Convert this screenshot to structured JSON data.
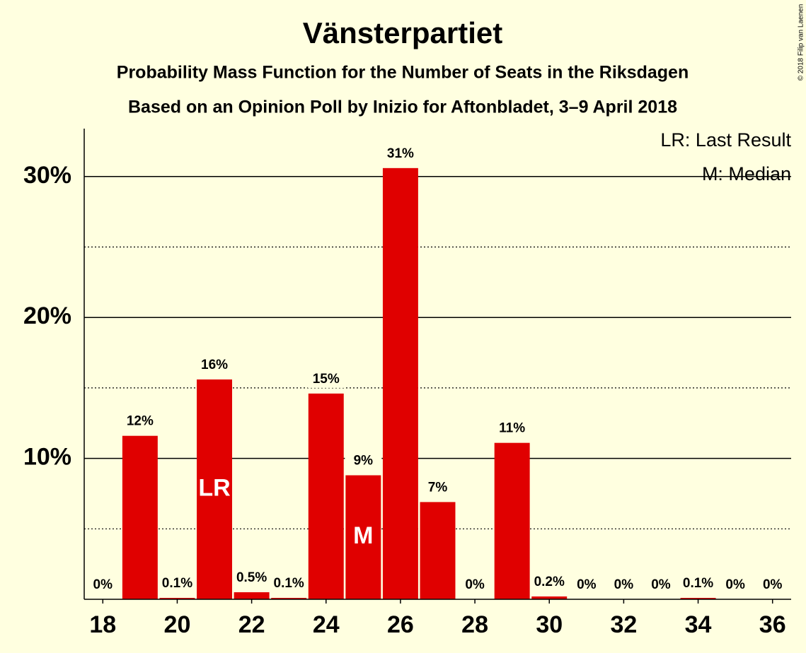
{
  "chart_data": {
    "type": "bar",
    "title": "Vänsterpartiet",
    "subtitles": [
      "Probability Mass Function for the Number of Seats in the Riksdagen",
      "Based on an Opinion Poll by Inizio for Aftonbladet, 3–9 April 2018"
    ],
    "x": [
      18,
      19,
      20,
      21,
      22,
      23,
      24,
      25,
      26,
      27,
      28,
      29,
      30,
      31,
      32,
      33,
      34,
      35,
      36
    ],
    "values": [
      0,
      11.6,
      0.1,
      15.6,
      0.5,
      0.1,
      14.6,
      8.8,
      30.6,
      6.9,
      0,
      11.1,
      0.2,
      0,
      0,
      0,
      0.1,
      0,
      0
    ],
    "value_labels": [
      "0%",
      "12%",
      "0.1%",
      "16%",
      "0.5%",
      "0.1%",
      "15%",
      "9%",
      "31%",
      "7%",
      "0%",
      "11%",
      "0.2%",
      "0%",
      "0%",
      "0%",
      "0.1%",
      "0%",
      "0%"
    ],
    "color": "#e00000",
    "xlim": [
      17.5,
      36.5
    ],
    "xticks": [
      18,
      20,
      22,
      24,
      26,
      28,
      30,
      32,
      34,
      36
    ],
    "ylim": [
      0,
      33.4
    ],
    "yticks": [
      {
        "value": 10,
        "label": "10%"
      },
      {
        "value": 20,
        "label": "20%"
      },
      {
        "value": 30,
        "label": "30%"
      }
    ],
    "minor_yticks": [
      5,
      15,
      25
    ],
    "grid": true,
    "bar_markers": [
      {
        "x": 21,
        "label": "LR"
      },
      {
        "x": 25,
        "label": "M"
      }
    ],
    "legend": [
      "LR: Last Result",
      "M: Median"
    ],
    "legend_position": "upper right",
    "copyright": "© 2018 Filip van Laenen"
  }
}
